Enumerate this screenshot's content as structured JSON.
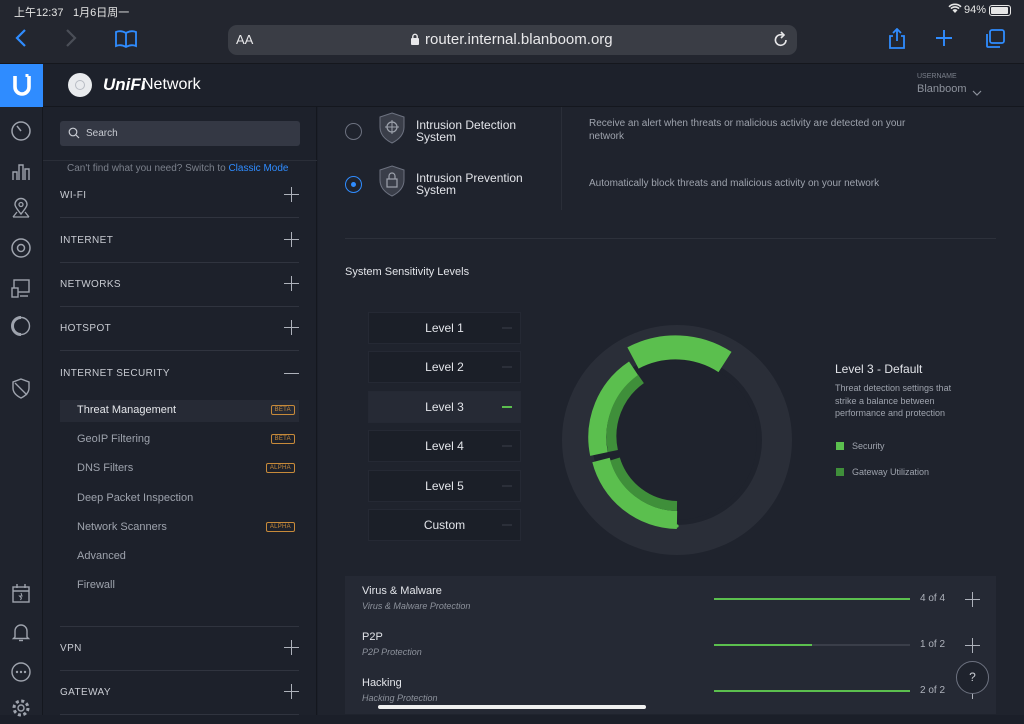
{
  "status": {
    "time": "上午12:37",
    "date": "1月6日周一",
    "battery": "94%"
  },
  "safari": {
    "text_size": "AA",
    "url": "router.internal.blanboom.org"
  },
  "app": {
    "brand": "Network",
    "username_label": "USERNAME",
    "username": "Blanboom"
  },
  "sidebar": {
    "search_placeholder": "Search",
    "hint": "Can't find what you need? Switch to ",
    "hint_link": "Classic Mode",
    "sections": [
      {
        "label": "WI-FI"
      },
      {
        "label": "INTERNET"
      },
      {
        "label": "NETWORKS"
      },
      {
        "label": "HOTSPOT"
      },
      {
        "label": "INTERNET SECURITY"
      }
    ],
    "subitems": [
      {
        "label": "Threat Management",
        "badge": "BETA"
      },
      {
        "label": "GeoIP Filtering",
        "badge": "BETA"
      },
      {
        "label": "DNS Filters",
        "badge": "ALPHA"
      },
      {
        "label": "Deep Packet Inspection",
        "badge": ""
      },
      {
        "label": "Network Scanners",
        "badge": "ALPHA"
      },
      {
        "label": "Advanced",
        "badge": ""
      },
      {
        "label": "Firewall",
        "badge": ""
      }
    ],
    "bottom_sections": [
      {
        "label": "VPN"
      },
      {
        "label": "GATEWAY"
      }
    ]
  },
  "protection": [
    {
      "title": "Intrusion Detection System",
      "desc": "Receive an alert when threats or malicious activity are detected on your network",
      "selected": false
    },
    {
      "title": "Intrusion Prevention System",
      "desc": "Automatically block threats and malicious activity on your network",
      "selected": true
    }
  ],
  "sensitivity": {
    "heading": "System Sensitivity Levels",
    "levels": [
      "Level 1",
      "Level 2",
      "Level 3",
      "Level 4",
      "Level 5",
      "Custom"
    ],
    "selected_index": 2,
    "detail_title": "Level 3 - Default",
    "detail_desc": "Threat detection settings that strike a balance between performance and protection",
    "legend": [
      {
        "label": "Security",
        "color": "#5bbf4e"
      },
      {
        "label": "Gateway Utilization",
        "color": "#3f8f3a"
      }
    ]
  },
  "categories": [
    {
      "title": "Virus & Malware",
      "subtitle": "Virus & Malware Protection",
      "count": "4 of 4",
      "fraction": 1.0
    },
    {
      "title": "P2P",
      "subtitle": "P2P Protection",
      "count": "1 of 2",
      "fraction": 0.5
    },
    {
      "title": "Hacking",
      "subtitle": "Hacking Protection",
      "count": "2 of 2",
      "fraction": 1.0
    }
  ],
  "help_label": "?"
}
